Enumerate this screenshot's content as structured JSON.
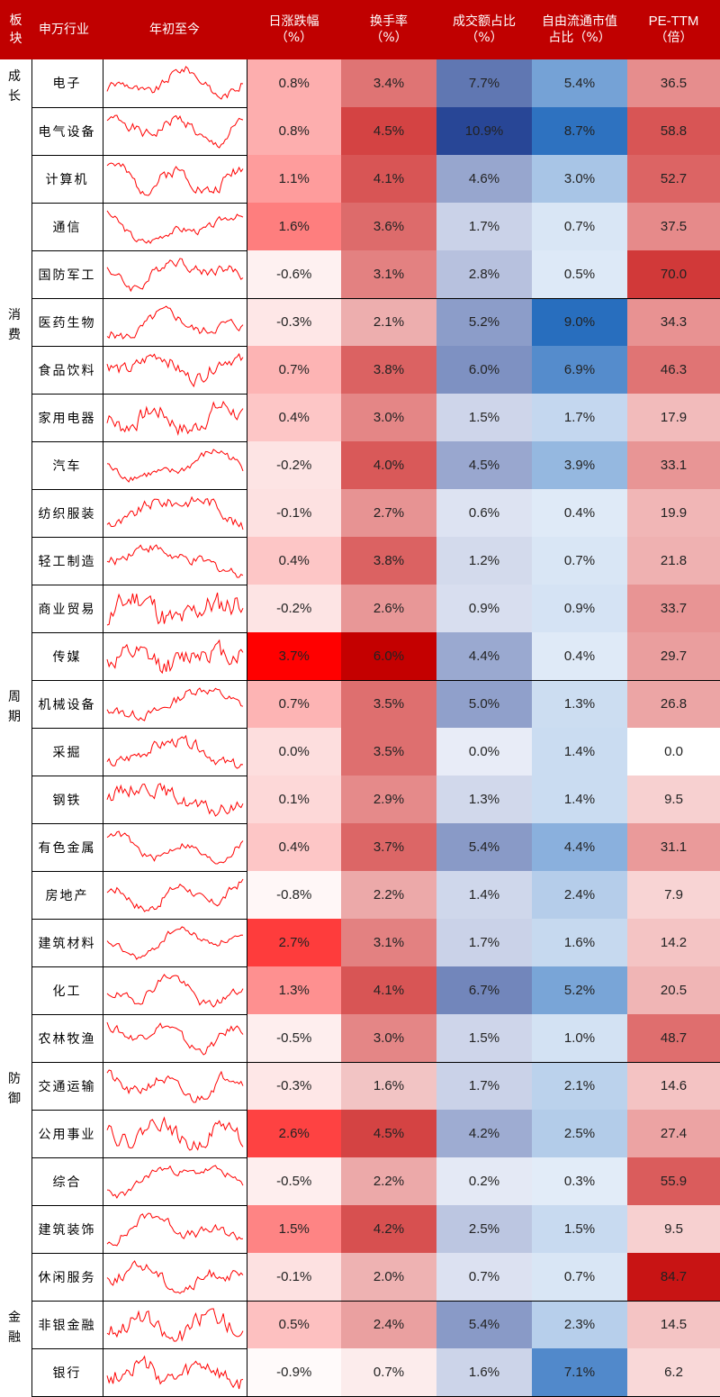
{
  "headers": {
    "sector": "板块",
    "industry": "申万行业",
    "ytd": "年初至今",
    "daily": "日涨跌幅",
    "daily_unit": "（%）",
    "turnover": "换手率",
    "turnover_unit": "（%）",
    "volume": "成交额占比",
    "volume_unit": "（%）",
    "float": "自由流通市值",
    "float_unit": "占比（%）",
    "pe": "PE-TTM",
    "pe_unit": "（倍）"
  },
  "colors": {
    "header_bg": "#c00000",
    "header_text": "#ffffff",
    "sparkline": "#ff0000",
    "red_scale_max": "#ff0000",
    "blue_scale_max": "#2e5fa8",
    "float_scale_max": "#2e75b6"
  },
  "chart_data": {
    "type": "table",
    "column_ranges": {
      "daily_max": 3.7,
      "turnover_max": 6.0,
      "volume_max": 10.9,
      "float_max": 9.0,
      "pe_max": 84.7
    },
    "groups": [
      {
        "name": "成长",
        "rows": [
          {
            "industry": "电子",
            "daily": "0.8%",
            "turnover": "3.4%",
            "volume": "7.7%",
            "float": "5.4%",
            "pe": "36.5",
            "dv": 0.8,
            "tv": 3.4,
            "vv": 7.7,
            "fv": 5.4,
            "pv": 36.5
          },
          {
            "industry": "电气设备",
            "daily": "0.8%",
            "turnover": "4.5%",
            "volume": "10.9%",
            "float": "8.7%",
            "pe": "58.8",
            "dv": 0.8,
            "tv": 4.5,
            "vv": 10.9,
            "fv": 8.7,
            "pv": 58.8
          },
          {
            "industry": "计算机",
            "daily": "1.1%",
            "turnover": "4.1%",
            "volume": "4.6%",
            "float": "3.0%",
            "pe": "52.7",
            "dv": 1.1,
            "tv": 4.1,
            "vv": 4.6,
            "fv": 3.0,
            "pv": 52.7
          },
          {
            "industry": "通信",
            "daily": "1.6%",
            "turnover": "3.6%",
            "volume": "1.7%",
            "float": "0.7%",
            "pe": "37.5",
            "dv": 1.6,
            "tv": 3.6,
            "vv": 1.7,
            "fv": 0.7,
            "pv": 37.5
          },
          {
            "industry": "国防军工",
            "daily": "-0.6%",
            "turnover": "3.1%",
            "volume": "2.8%",
            "float": "0.5%",
            "pe": "70.0",
            "dv": -0.6,
            "tv": 3.1,
            "vv": 2.8,
            "fv": 0.5,
            "pv": 70.0
          }
        ]
      },
      {
        "name": "消费",
        "rows": [
          {
            "industry": "医药生物",
            "daily": "-0.3%",
            "turnover": "2.1%",
            "volume": "5.2%",
            "float": "9.0%",
            "pe": "34.3",
            "dv": -0.3,
            "tv": 2.1,
            "vv": 5.2,
            "fv": 9.0,
            "pv": 34.3
          },
          {
            "industry": "食品饮料",
            "daily": "0.7%",
            "turnover": "3.8%",
            "volume": "6.0%",
            "float": "6.9%",
            "pe": "46.3",
            "dv": 0.7,
            "tv": 3.8,
            "vv": 6.0,
            "fv": 6.9,
            "pv": 46.3
          },
          {
            "industry": "家用电器",
            "daily": "0.4%",
            "turnover": "3.0%",
            "volume": "1.5%",
            "float": "1.7%",
            "pe": "17.9",
            "dv": 0.4,
            "tv": 3.0,
            "vv": 1.5,
            "fv": 1.7,
            "pv": 17.9
          },
          {
            "industry": "汽车",
            "daily": "-0.2%",
            "turnover": "4.0%",
            "volume": "4.5%",
            "float": "3.9%",
            "pe": "33.1",
            "dv": -0.2,
            "tv": 4.0,
            "vv": 4.5,
            "fv": 3.9,
            "pv": 33.1
          },
          {
            "industry": "纺织服装",
            "daily": "-0.1%",
            "turnover": "2.7%",
            "volume": "0.6%",
            "float": "0.4%",
            "pe": "19.9",
            "dv": -0.1,
            "tv": 2.7,
            "vv": 0.6,
            "fv": 0.4,
            "pv": 19.9
          },
          {
            "industry": "轻工制造",
            "daily": "0.4%",
            "turnover": "3.8%",
            "volume": "1.2%",
            "float": "0.7%",
            "pe": "21.8",
            "dv": 0.4,
            "tv": 3.8,
            "vv": 1.2,
            "fv": 0.7,
            "pv": 21.8
          },
          {
            "industry": "商业贸易",
            "daily": "-0.2%",
            "turnover": "2.6%",
            "volume": "0.9%",
            "float": "0.9%",
            "pe": "33.7",
            "dv": -0.2,
            "tv": 2.6,
            "vv": 0.9,
            "fv": 0.9,
            "pv": 33.7
          },
          {
            "industry": "传媒",
            "daily": "3.7%",
            "turnover": "6.0%",
            "volume": "4.4%",
            "float": "0.4%",
            "pe": "29.7",
            "dv": 3.7,
            "tv": 6.0,
            "vv": 4.4,
            "fv": 0.4,
            "pv": 29.7
          }
        ]
      },
      {
        "name": "周期",
        "rows": [
          {
            "industry": "机械设备",
            "daily": "0.7%",
            "turnover": "3.5%",
            "volume": "5.0%",
            "float": "1.3%",
            "pe": "26.8",
            "dv": 0.7,
            "tv": 3.5,
            "vv": 5.0,
            "fv": 1.3,
            "pv": 26.8
          },
          {
            "industry": "采掘",
            "daily": "0.0%",
            "turnover": "3.5%",
            "volume": "0.0%",
            "float": "1.4%",
            "pe": "0.0",
            "dv": 0.0,
            "tv": 3.5,
            "vv": 0.0,
            "fv": 1.4,
            "pv": 0.0
          },
          {
            "industry": "钢铁",
            "daily": "0.1%",
            "turnover": "2.9%",
            "volume": "1.3%",
            "float": "1.4%",
            "pe": "9.5",
            "dv": 0.1,
            "tv": 2.9,
            "vv": 1.3,
            "fv": 1.4,
            "pv": 9.5
          },
          {
            "industry": "有色金属",
            "daily": "0.4%",
            "turnover": "3.7%",
            "volume": "5.4%",
            "float": "4.4%",
            "pe": "31.1",
            "dv": 0.4,
            "tv": 3.7,
            "vv": 5.4,
            "fv": 4.4,
            "pv": 31.1
          },
          {
            "industry": "房地产",
            "daily": "-0.8%",
            "turnover": "2.2%",
            "volume": "1.4%",
            "float": "2.4%",
            "pe": "7.9",
            "dv": -0.8,
            "tv": 2.2,
            "vv": 1.4,
            "fv": 2.4,
            "pv": 7.9
          },
          {
            "industry": "建筑材料",
            "daily": "2.7%",
            "turnover": "3.1%",
            "volume": "1.7%",
            "float": "1.6%",
            "pe": "14.2",
            "dv": 2.7,
            "tv": 3.1,
            "vv": 1.7,
            "fv": 1.6,
            "pv": 14.2
          },
          {
            "industry": "化工",
            "daily": "1.3%",
            "turnover": "4.1%",
            "volume": "6.7%",
            "float": "5.2%",
            "pe": "20.5",
            "dv": 1.3,
            "tv": 4.1,
            "vv": 6.7,
            "fv": 5.2,
            "pv": 20.5
          },
          {
            "industry": "农林牧渔",
            "daily": "-0.5%",
            "turnover": "3.0%",
            "volume": "1.5%",
            "float": "1.0%",
            "pe": "48.7",
            "dv": -0.5,
            "tv": 3.0,
            "vv": 1.5,
            "fv": 1.0,
            "pv": 48.7
          }
        ]
      },
      {
        "name": "防御",
        "rows": [
          {
            "industry": "交通运输",
            "daily": "-0.3%",
            "turnover": "1.6%",
            "volume": "1.7%",
            "float": "2.1%",
            "pe": "14.6",
            "dv": -0.3,
            "tv": 1.6,
            "vv": 1.7,
            "fv": 2.1,
            "pv": 14.6
          },
          {
            "industry": "公用事业",
            "daily": "2.6%",
            "turnover": "4.5%",
            "volume": "4.2%",
            "float": "2.5%",
            "pe": "27.4",
            "dv": 2.6,
            "tv": 4.5,
            "vv": 4.2,
            "fv": 2.5,
            "pv": 27.4
          },
          {
            "industry": "综合",
            "daily": "-0.5%",
            "turnover": "2.2%",
            "volume": "0.2%",
            "float": "0.3%",
            "pe": "55.9",
            "dv": -0.5,
            "tv": 2.2,
            "vv": 0.2,
            "fv": 0.3,
            "pv": 55.9
          },
          {
            "industry": "建筑装饰",
            "daily": "1.5%",
            "turnover": "4.2%",
            "volume": "2.5%",
            "float": "1.5%",
            "pe": "9.5",
            "dv": 1.5,
            "tv": 4.2,
            "vv": 2.5,
            "fv": 1.5,
            "pv": 9.5
          },
          {
            "industry": "休闲服务",
            "daily": "-0.1%",
            "turnover": "2.0%",
            "volume": "0.7%",
            "float": "0.7%",
            "pe": "84.7",
            "dv": -0.1,
            "tv": 2.0,
            "vv": 0.7,
            "fv": 0.7,
            "pv": 84.7
          }
        ]
      },
      {
        "name": "金融",
        "rows": [
          {
            "industry": "非银金融",
            "daily": "0.5%",
            "turnover": "2.4%",
            "volume": "5.4%",
            "float": "2.3%",
            "pe": "14.5",
            "dv": 0.5,
            "tv": 2.4,
            "vv": 5.4,
            "fv": 2.3,
            "pv": 14.5
          },
          {
            "industry": "银行",
            "daily": "-0.9%",
            "turnover": "0.7%",
            "volume": "1.6%",
            "float": "7.1%",
            "pe": "6.2",
            "dv": -0.9,
            "tv": 0.7,
            "vv": 1.6,
            "fv": 7.1,
            "pv": 6.2
          }
        ]
      }
    ]
  }
}
